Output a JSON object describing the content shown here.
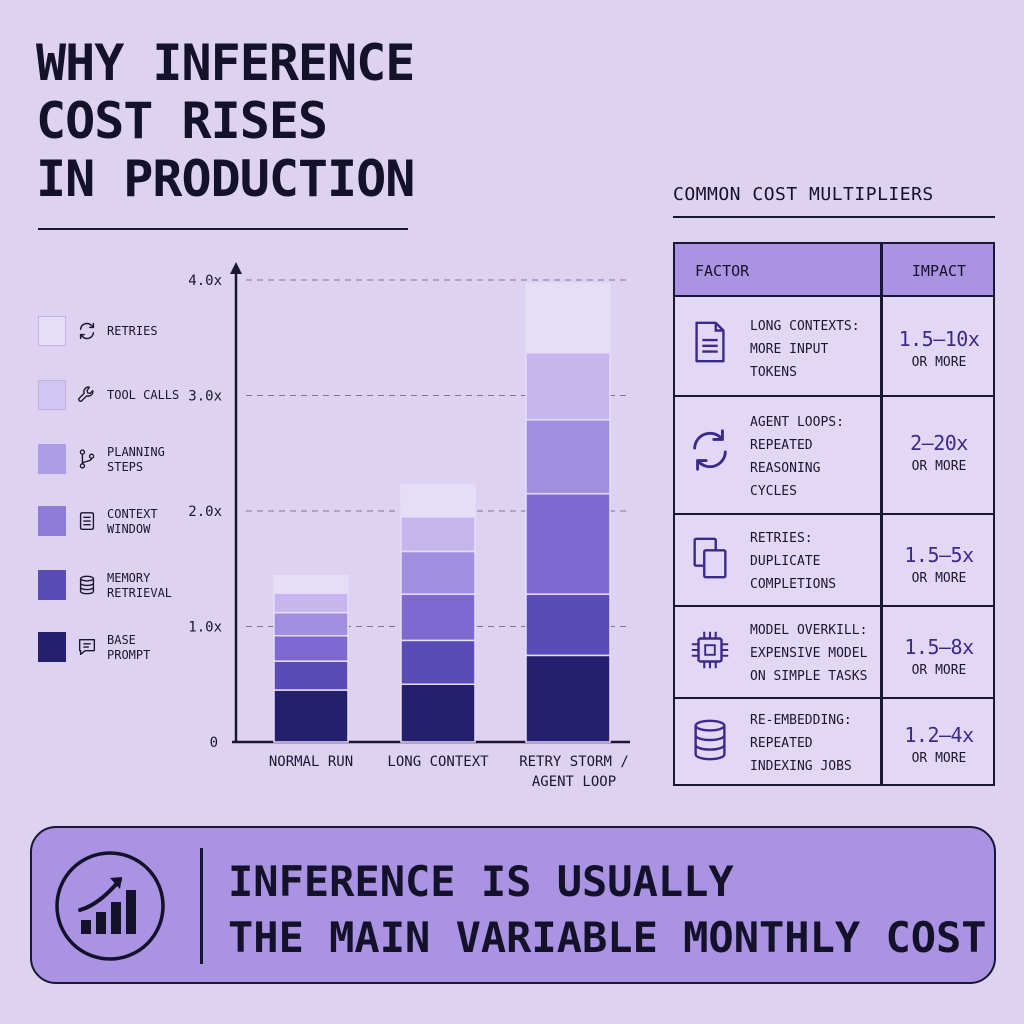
{
  "title_lines": [
    "WHY INFERENCE",
    "COST RISES",
    "IN PRODUCTION"
  ],
  "chart_data": {
    "type": "bar",
    "stacked": true,
    "categories": [
      "NORMAL RUN",
      "LONG CONTEXT",
      "RETRY STORM /\nAGENT LOOP"
    ],
    "y_ticks": [
      "0",
      "1.0x",
      "2.0x",
      "3.0x",
      "4.0x"
    ],
    "ylim": [
      0,
      4.5
    ],
    "grid": "dashed lines at 1.0x through 4.0x",
    "series": [
      {
        "name": "BASE PROMPT",
        "color": "#24206e",
        "values": [
          0.45,
          0.5,
          0.75
        ]
      },
      {
        "name": "MEMORY RETRIEVAL",
        "color": "#5a4cb6",
        "values": [
          0.25,
          0.38,
          0.53
        ]
      },
      {
        "name": "CONTEXT WINDOW",
        "color": "#7d69cf",
        "values": [
          0.22,
          0.4,
          0.87
        ]
      },
      {
        "name": "PLANNING STEPS",
        "color": "#a08ee0",
        "values": [
          0.2,
          0.37,
          0.64
        ]
      },
      {
        "name": "TOOL CALLS",
        "color": "#c5b7ee",
        "values": [
          0.17,
          0.3,
          0.58
        ]
      },
      {
        "name": "RETRIES",
        "color": "#e6def7",
        "values": [
          0.15,
          0.28,
          0.6
        ]
      }
    ]
  },
  "legend": [
    {
      "label": "RETRIES",
      "icon": "refresh-icon",
      "color": "#e6def7"
    },
    {
      "label": "TOOL CALLS",
      "icon": "wrench-icon",
      "color": "#d1c5f2"
    },
    {
      "label": "PLANNING\nSTEPS",
      "icon": "branch-icon",
      "color": "#ad9ce6"
    },
    {
      "label": "CONTEXT\nWINDOW",
      "icon": "document-icon",
      "color": "#8f7bd8"
    },
    {
      "label": "MEMORY\nRETRIEVAL",
      "icon": "database-icon",
      "color": "#5a4cb6"
    },
    {
      "label": "BASE\nPROMPT",
      "icon": "chat-icon",
      "color": "#24206e"
    }
  ],
  "table": {
    "title": "COMMON COST MULTIPLIERS",
    "header_factor": "FACTOR",
    "header_impact": "IMPACT",
    "rows": [
      {
        "icon": "document-icon",
        "text": "LONG CONTEXTS:\nMORE INPUT\nTOKENS",
        "impact": "1.5–10x",
        "impact_note": "OR MORE"
      },
      {
        "icon": "cycle-icon",
        "text": "AGENT LOOPS:\nREPEATED\nREASONING\nCYCLES",
        "impact": "2–20x",
        "impact_note": "OR MORE"
      },
      {
        "icon": "duplicate-icon",
        "text": "RETRIES:\nDUPLICATE\nCOMPLETIONS",
        "impact": "1.5–5x",
        "impact_note": "OR MORE"
      },
      {
        "icon": "chip-icon",
        "text": "MODEL OVERKILL:\nEXPENSIVE MODEL\nON SIMPLE TASKS",
        "impact": "1.5–8x",
        "impact_note": "OR MORE"
      },
      {
        "icon": "database-icon",
        "text": "RE-EMBEDDING:\nREPEATED\nINDEXING JOBS",
        "impact": "1.2–4x",
        "impact_note": "OR MORE"
      }
    ]
  },
  "banner": {
    "icon": "growth-chart-icon",
    "text": "INFERENCE IS USUALLY\nTHE MAIN VARIABLE MONTHLY COST"
  }
}
